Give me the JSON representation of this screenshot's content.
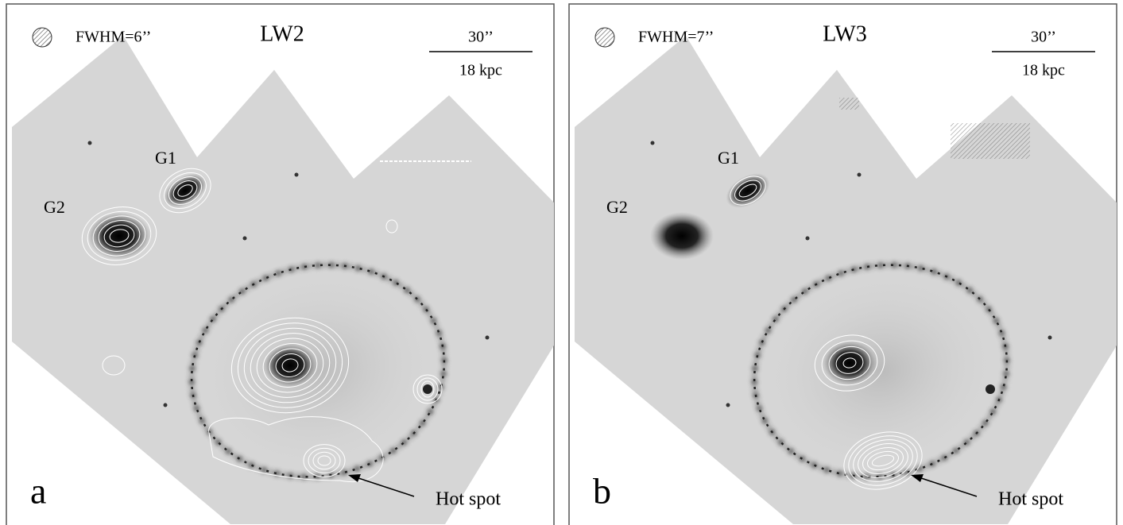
{
  "panels": [
    {
      "label": "a",
      "band": "LW2",
      "fwhm": "FWHM=6’’",
      "scale_angle": "30’’",
      "scale_distance": "18 kpc",
      "galaxy_1": "G1",
      "galaxy_2": "G2",
      "annotation": "Hot spot"
    },
    {
      "label": "b",
      "band": "LW3",
      "fwhm": "FWHM=7’’",
      "scale_angle": "30’’",
      "scale_distance": "18 kpc",
      "galaxy_1": "G1",
      "galaxy_2": "G2",
      "annotation": "Hot spot"
    }
  ]
}
